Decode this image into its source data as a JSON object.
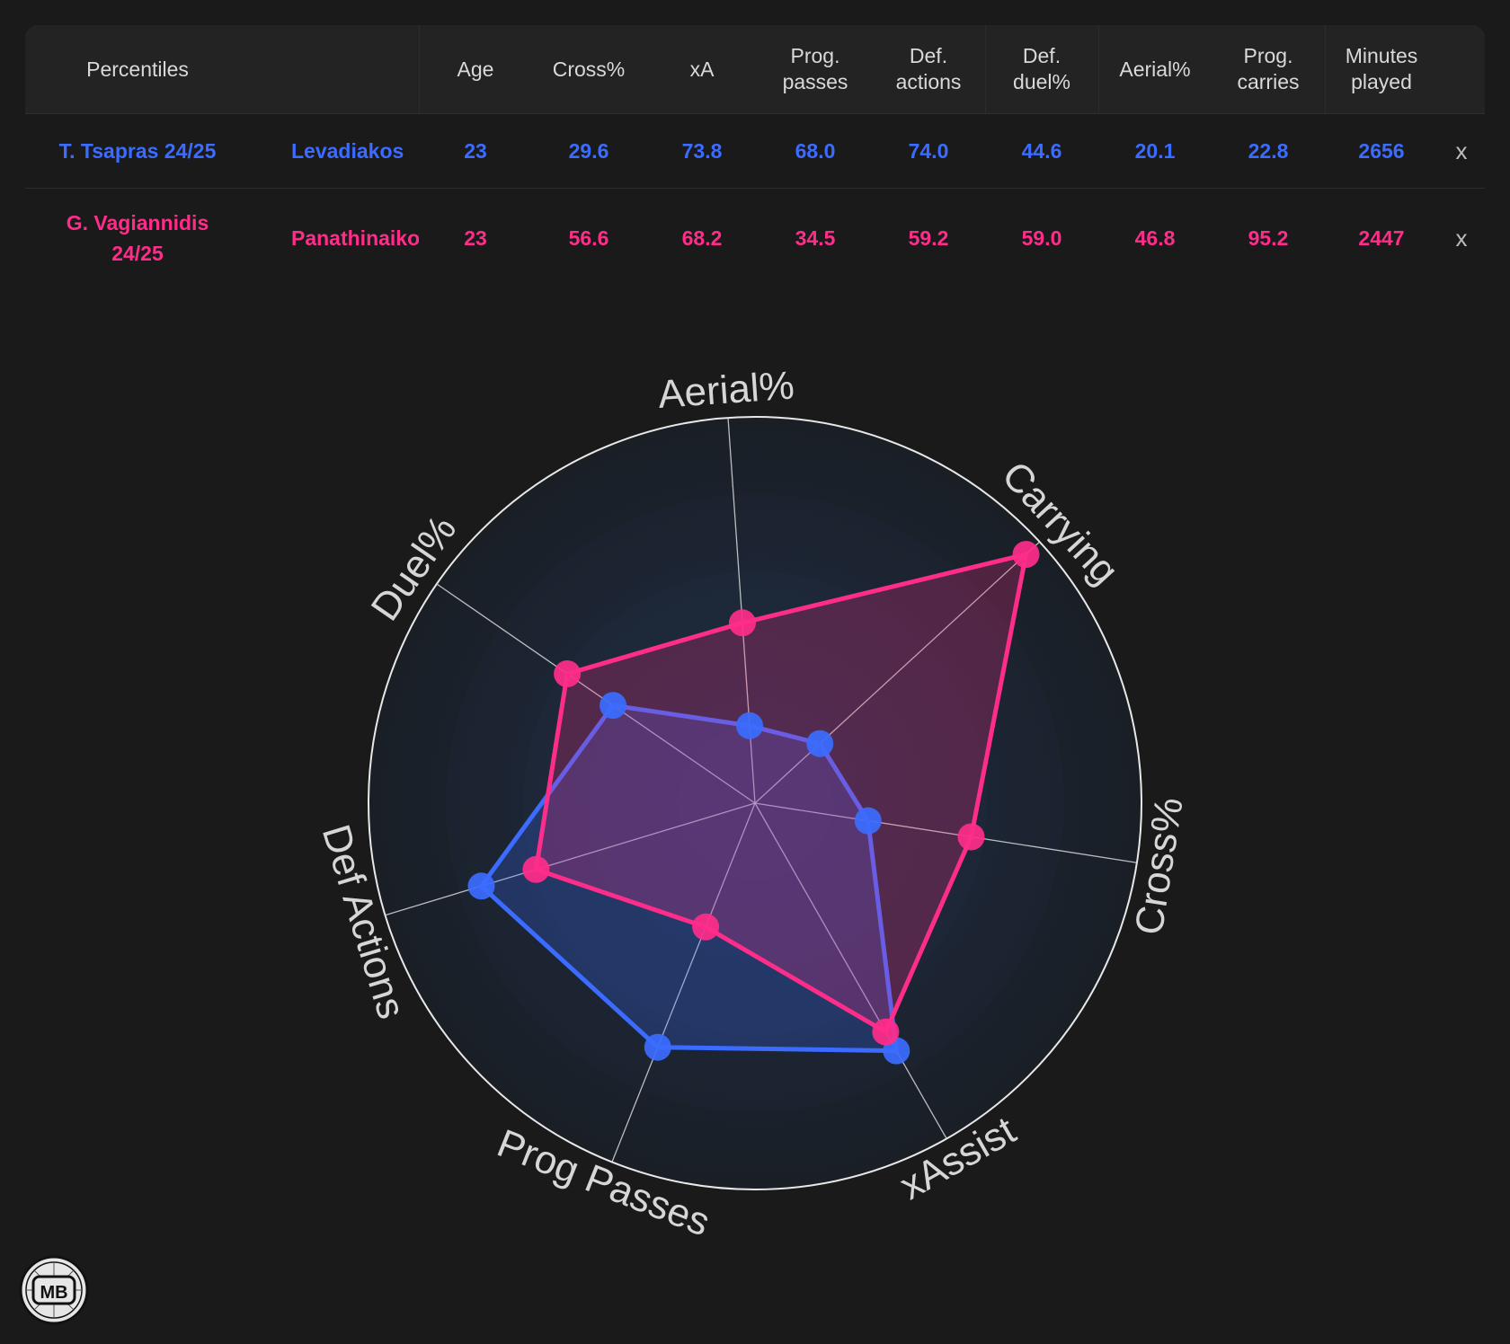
{
  "table": {
    "headers": {
      "percentiles": "Percentiles",
      "age": "Age",
      "cross_pct": "Cross%",
      "xa": "xA",
      "prog_passes": "Prog.\npasses",
      "def_actions": "Def.\nactions",
      "def_duel_pct": "Def.\nduel%",
      "aerial_pct": "Aerial%",
      "prog_carries": "Prog.\ncarries",
      "minutes_played": "Minutes\nplayed"
    },
    "rows": [
      {
        "player": "T. Tsapras 24/25",
        "team": "Levadiakos",
        "age": "23",
        "cross_pct": "29.6",
        "xa": "73.8",
        "prog_passes": "68.0",
        "def_actions": "74.0",
        "def_duel_pct": "44.6",
        "aerial_pct": "20.1",
        "prog_carries": "22.8",
        "minutes_played": "2656",
        "remove": "x",
        "color": "#3b6cff"
      },
      {
        "player": "G. Vagiannidis\n24/25",
        "team": "Panathinaikos",
        "age": "23",
        "cross_pct": "56.6",
        "xa": "68.2",
        "prog_passes": "34.5",
        "def_actions": "59.2",
        "def_duel_pct": "59.0",
        "aerial_pct": "46.8",
        "prog_carries": "95.2",
        "minutes_played": "2447",
        "remove": "x",
        "color": "#ff2d8a"
      }
    ]
  },
  "chart_data": {
    "type": "radar",
    "axes": [
      "Aerial%",
      "Carrying",
      "Cross%",
      "xAssist",
      "Prog Passes",
      "Def Actions",
      "Duel%"
    ],
    "range": [
      0,
      100
    ],
    "grid": true,
    "series": [
      {
        "name": "T. Tsapras 24/25",
        "color": "#3b6cff",
        "values": [
          20.1,
          22.8,
          29.6,
          73.8,
          68.0,
          74.0,
          44.6
        ]
      },
      {
        "name": "G. Vagiannidis 24/25",
        "color": "#ff2d8a",
        "values": [
          46.8,
          95.2,
          56.6,
          68.2,
          34.5,
          59.2,
          59.0
        ]
      }
    ]
  },
  "logo": {
    "text": "MB"
  }
}
